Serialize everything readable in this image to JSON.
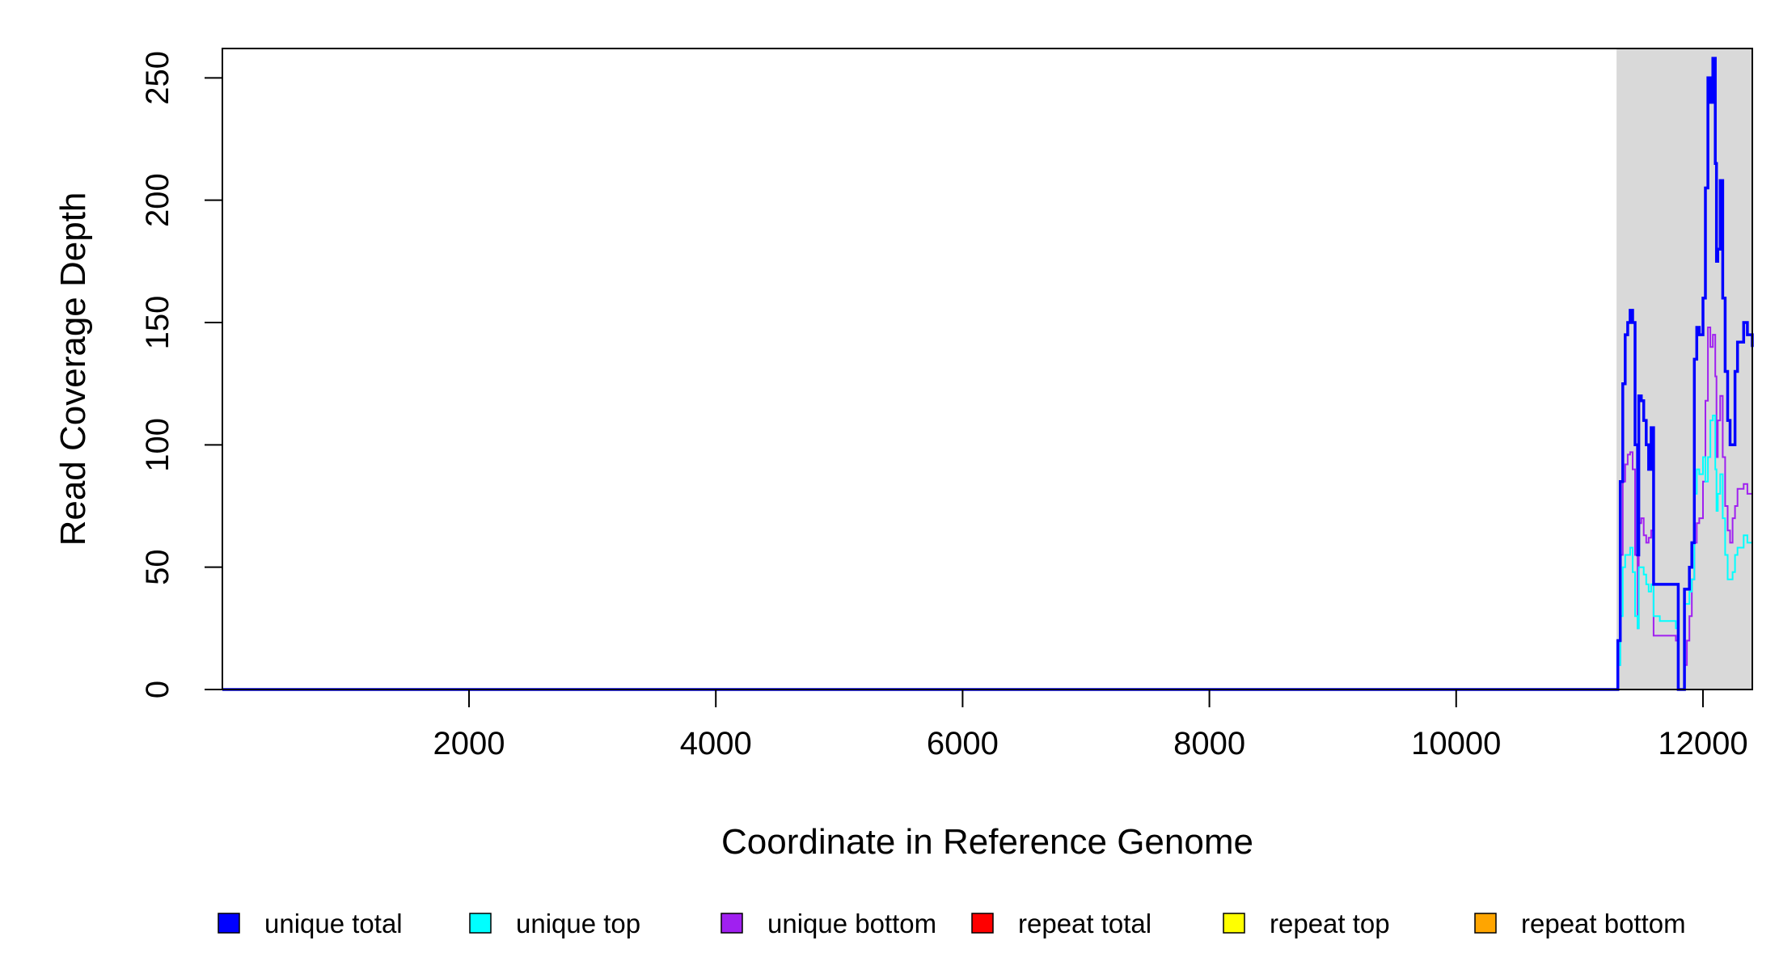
{
  "chart_data": {
    "type": "line",
    "title": "",
    "xlabel": "Coordinate in Reference Genome",
    "ylabel": "Read Coverage Depth",
    "xlim": [
      1,
      12400
    ],
    "ylim": [
      0,
      262
    ],
    "xticks": [
      2000,
      4000,
      6000,
      8000,
      10000,
      12000
    ],
    "yticks": [
      0,
      50,
      100,
      150,
      200,
      250
    ],
    "grid": false,
    "legend_position": "bottom",
    "highlight_region": {
      "x": [
        11300,
        12400
      ],
      "color": "#d9d9d9"
    },
    "series": [
      {
        "name": "unique total",
        "color": "#0000ff",
        "width": 3.5,
        "points": [
          [
            1,
            0
          ],
          [
            11300,
            0
          ],
          [
            11310,
            20
          ],
          [
            11330,
            85
          ],
          [
            11350,
            125
          ],
          [
            11370,
            145
          ],
          [
            11390,
            150
          ],
          [
            11410,
            155
          ],
          [
            11430,
            150
          ],
          [
            11450,
            100
          ],
          [
            11470,
            55
          ],
          [
            11480,
            120
          ],
          [
            11500,
            118
          ],
          [
            11520,
            110
          ],
          [
            11540,
            100
          ],
          [
            11560,
            90
          ],
          [
            11580,
            107
          ],
          [
            11600,
            43
          ],
          [
            11650,
            43
          ],
          [
            11700,
            43
          ],
          [
            11750,
            43
          ],
          [
            11780,
            43
          ],
          [
            11800,
            0
          ],
          [
            11830,
            0
          ],
          [
            11850,
            41
          ],
          [
            11870,
            41
          ],
          [
            11890,
            50
          ],
          [
            11910,
            60
          ],
          [
            11930,
            135
          ],
          [
            11950,
            148
          ],
          [
            11970,
            145
          ],
          [
            12000,
            160
          ],
          [
            12020,
            205
          ],
          [
            12040,
            250
          ],
          [
            12060,
            240
          ],
          [
            12080,
            258
          ],
          [
            12100,
            215
          ],
          [
            12110,
            175
          ],
          [
            12120,
            180
          ],
          [
            12140,
            208
          ],
          [
            12160,
            160
          ],
          [
            12180,
            130
          ],
          [
            12200,
            110
          ],
          [
            12220,
            100
          ],
          [
            12240,
            100
          ],
          [
            12260,
            130
          ],
          [
            12280,
            142
          ],
          [
            12300,
            142
          ],
          [
            12330,
            150
          ],
          [
            12360,
            145
          ],
          [
            12400,
            140
          ]
        ]
      },
      {
        "name": "unique top",
        "color": "#00ffff",
        "width": 2,
        "points": [
          [
            1,
            0
          ],
          [
            11300,
            0
          ],
          [
            11310,
            10
          ],
          [
            11330,
            30
          ],
          [
            11350,
            50
          ],
          [
            11370,
            55
          ],
          [
            11390,
            55
          ],
          [
            11410,
            58
          ],
          [
            11430,
            48
          ],
          [
            11450,
            30
          ],
          [
            11470,
            25
          ],
          [
            11480,
            50
          ],
          [
            11500,
            50
          ],
          [
            11520,
            47
          ],
          [
            11540,
            43
          ],
          [
            11560,
            40
          ],
          [
            11580,
            43
          ],
          [
            11600,
            30
          ],
          [
            11650,
            28
          ],
          [
            11700,
            28
          ],
          [
            11750,
            28
          ],
          [
            11780,
            25
          ],
          [
            11800,
            0
          ],
          [
            11830,
            0
          ],
          [
            11850,
            35
          ],
          [
            11870,
            35
          ],
          [
            11890,
            40
          ],
          [
            11910,
            45
          ],
          [
            11930,
            80
          ],
          [
            11950,
            90
          ],
          [
            11970,
            88
          ],
          [
            12000,
            95
          ],
          [
            12020,
            85
          ],
          [
            12040,
            95
          ],
          [
            12060,
            110
          ],
          [
            12080,
            112
          ],
          [
            12100,
            90
          ],
          [
            12110,
            73
          ],
          [
            12120,
            80
          ],
          [
            12140,
            88
          ],
          [
            12160,
            70
          ],
          [
            12180,
            55
          ],
          [
            12200,
            45
          ],
          [
            12220,
            45
          ],
          [
            12240,
            48
          ],
          [
            12260,
            55
          ],
          [
            12280,
            58
          ],
          [
            12300,
            58
          ],
          [
            12330,
            63
          ],
          [
            12360,
            60
          ],
          [
            12400,
            60
          ]
        ]
      },
      {
        "name": "unique bottom",
        "color": "#a020f0",
        "width": 2,
        "points": [
          [
            1,
            0
          ],
          [
            11300,
            0
          ],
          [
            11310,
            10
          ],
          [
            11330,
            55
          ],
          [
            11350,
            85
          ],
          [
            11370,
            92
          ],
          [
            11390,
            96
          ],
          [
            11410,
            97
          ],
          [
            11430,
            90
          ],
          [
            11450,
            55
          ],
          [
            11470,
            25
          ],
          [
            11480,
            68
          ],
          [
            11500,
            70
          ],
          [
            11520,
            63
          ],
          [
            11540,
            60
          ],
          [
            11560,
            62
          ],
          [
            11580,
            65
          ],
          [
            11600,
            22
          ],
          [
            11650,
            22
          ],
          [
            11700,
            22
          ],
          [
            11750,
            22
          ],
          [
            11780,
            20
          ],
          [
            11800,
            0
          ],
          [
            11830,
            0
          ],
          [
            11850,
            10
          ],
          [
            11870,
            20
          ],
          [
            11890,
            30
          ],
          [
            11910,
            45
          ],
          [
            11930,
            60
          ],
          [
            11950,
            68
          ],
          [
            11970,
            70
          ],
          [
            12000,
            85
          ],
          [
            12020,
            118
          ],
          [
            12040,
            148
          ],
          [
            12060,
            140
          ],
          [
            12080,
            145
          ],
          [
            12100,
            128
          ],
          [
            12110,
            95
          ],
          [
            12120,
            110
          ],
          [
            12140,
            120
          ],
          [
            12160,
            95
          ],
          [
            12180,
            75
          ],
          [
            12200,
            65
          ],
          [
            12220,
            60
          ],
          [
            12240,
            70
          ],
          [
            12260,
            75
          ],
          [
            12280,
            82
          ],
          [
            12300,
            82
          ],
          [
            12330,
            84
          ],
          [
            12360,
            80
          ],
          [
            12400,
            78
          ]
        ]
      },
      {
        "name": "repeat total",
        "color": "#ff0000",
        "width": 2,
        "points": [
          [
            1,
            0
          ],
          [
            12400,
            0
          ]
        ]
      },
      {
        "name": "repeat top",
        "color": "#ffff00",
        "width": 2,
        "points": [
          [
            1,
            0
          ],
          [
            12400,
            0
          ]
        ]
      },
      {
        "name": "repeat bottom",
        "color": "#ffa500",
        "width": 2,
        "points": [
          [
            1,
            0
          ],
          [
            12400,
            0
          ]
        ]
      }
    ]
  }
}
